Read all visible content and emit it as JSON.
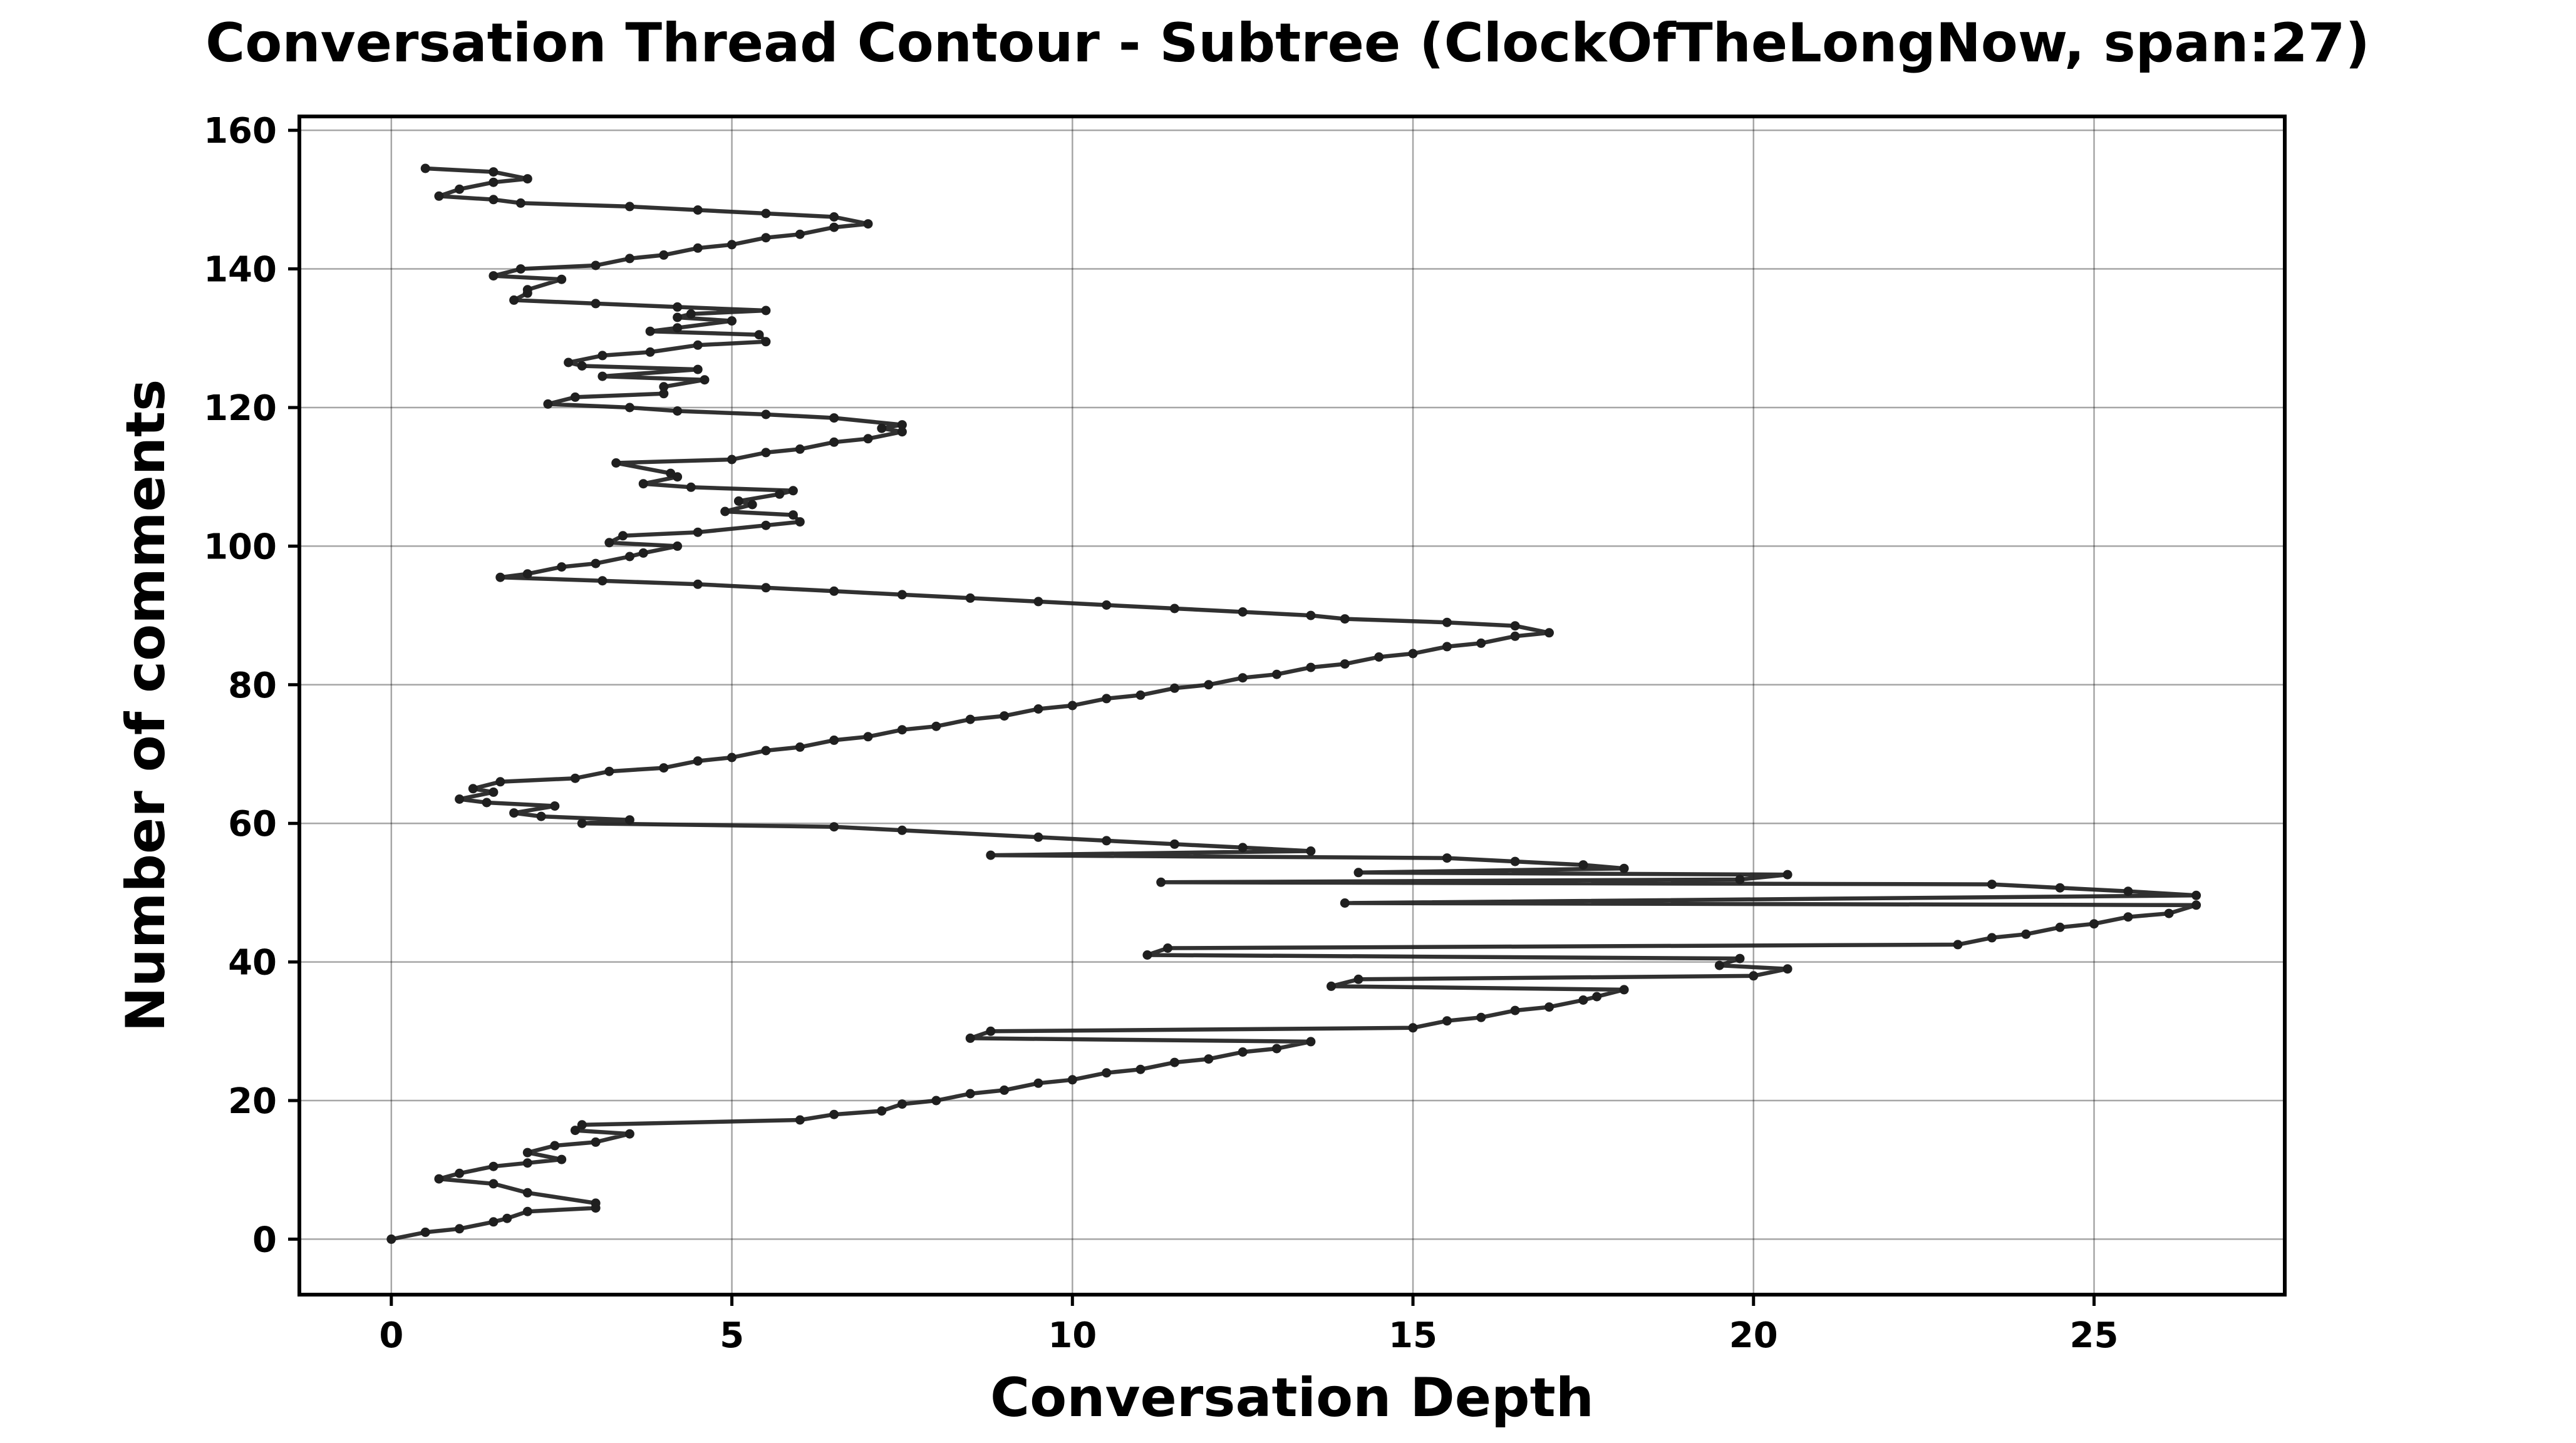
{
  "chart_data": {
    "type": "line",
    "title": "Conversation Thread Contour  - Subtree (ClockOfTheLongNow, span:27)",
    "xlabel": "Conversation Depth",
    "ylabel": "Number of comments",
    "xlim": [
      -1.35,
      27.8
    ],
    "ylim": [
      -8,
      162
    ],
    "xticks": [
      0,
      5,
      10,
      15,
      20,
      25
    ],
    "yticks": [
      0,
      20,
      40,
      60,
      80,
      100,
      120,
      140,
      160
    ],
    "xtick_labels": [
      "0",
      "5",
      "10",
      "15",
      "20",
      "25"
    ],
    "ytick_labels": [
      "0",
      "20",
      "40",
      "60",
      "80",
      "100",
      "120",
      "140",
      "160"
    ],
    "grid": true,
    "legend": "none",
    "series": [
      {
        "color": "#1f1f1f",
        "points": [
          [
            0,
            0
          ],
          [
            0.5,
            1
          ],
          [
            1,
            1.5
          ],
          [
            1.5,
            2.5
          ],
          [
            1.7,
            3
          ],
          [
            2,
            4
          ],
          [
            3,
            4.5
          ],
          [
            3,
            5.2
          ],
          [
            2,
            6.7
          ],
          [
            1.5,
            8
          ],
          [
            0.7,
            8.7
          ],
          [
            1,
            9.5
          ],
          [
            1.5,
            10.5
          ],
          [
            2,
            11
          ],
          [
            2.5,
            11.5
          ],
          [
            2,
            12.5
          ],
          [
            2.4,
            13.5
          ],
          [
            3,
            14
          ],
          [
            3.5,
            15.2
          ],
          [
            2.7,
            15.7
          ],
          [
            2.8,
            16.5
          ],
          [
            6,
            17.2
          ],
          [
            6.5,
            18
          ],
          [
            7.2,
            18.5
          ],
          [
            7.5,
            19.5
          ],
          [
            8,
            20
          ],
          [
            8.5,
            21
          ],
          [
            9,
            21.5
          ],
          [
            9.5,
            22.5
          ],
          [
            10,
            23
          ],
          [
            10.5,
            24
          ],
          [
            11,
            24.5
          ],
          [
            11.5,
            25.5
          ],
          [
            12,
            26
          ],
          [
            12.5,
            27
          ],
          [
            13,
            27.5
          ],
          [
            13.5,
            28.5
          ],
          [
            8.5,
            29
          ],
          [
            8.8,
            30
          ],
          [
            15,
            30.5
          ],
          [
            15.5,
            31.5
          ],
          [
            16,
            32
          ],
          [
            16.5,
            33
          ],
          [
            17,
            33.5
          ],
          [
            17.5,
            34.5
          ],
          [
            17.7,
            35
          ],
          [
            18.1,
            36
          ],
          [
            13.8,
            36.5
          ],
          [
            14.2,
            37.5
          ],
          [
            20,
            38
          ],
          [
            20.5,
            39
          ],
          [
            19.5,
            39.5
          ],
          [
            19.8,
            40.5
          ],
          [
            11.1,
            41
          ],
          [
            11.4,
            42
          ],
          [
            23,
            42.5
          ],
          [
            23.5,
            43.5
          ],
          [
            24,
            44
          ],
          [
            24.5,
            45
          ],
          [
            25,
            45.5
          ],
          [
            25.5,
            46.5
          ],
          [
            26.1,
            47
          ],
          [
            26.5,
            48.2
          ],
          [
            14,
            48.5
          ],
          [
            26.5,
            49.6
          ],
          [
            25.5,
            50.2
          ],
          [
            24.5,
            50.7
          ],
          [
            23.5,
            51.2
          ],
          [
            11.3,
            51.5
          ],
          [
            19.8,
            51.9
          ],
          [
            20.5,
            52.6
          ],
          [
            14.2,
            52.9
          ],
          [
            18.1,
            53.5
          ],
          [
            17.5,
            54
          ],
          [
            16.5,
            54.5
          ],
          [
            15.5,
            55
          ],
          [
            8.8,
            55.4
          ],
          [
            13.5,
            56
          ],
          [
            12.5,
            56.5
          ],
          [
            11.5,
            57
          ],
          [
            10.5,
            57.5
          ],
          [
            9.5,
            58
          ],
          [
            7.5,
            59
          ],
          [
            6.5,
            59.5
          ],
          [
            2.8,
            60
          ],
          [
            3.5,
            60.5
          ],
          [
            2.2,
            61
          ],
          [
            1.8,
            61.5
          ],
          [
            2.4,
            62.5
          ],
          [
            1.4,
            63
          ],
          [
            1,
            63.5
          ],
          [
            1.5,
            64.5
          ],
          [
            1.2,
            65
          ],
          [
            1.6,
            66
          ],
          [
            2.7,
            66.5
          ],
          [
            3.2,
            67.5
          ],
          [
            4,
            68
          ],
          [
            4.5,
            69
          ],
          [
            5,
            69.5
          ],
          [
            5.5,
            70.5
          ],
          [
            6,
            71
          ],
          [
            6.5,
            72
          ],
          [
            7,
            72.5
          ],
          [
            7.5,
            73.5
          ],
          [
            8,
            74
          ],
          [
            8.5,
            75
          ],
          [
            9,
            75.5
          ],
          [
            9.5,
            76.5
          ],
          [
            10,
            77
          ],
          [
            10.5,
            78
          ],
          [
            11,
            78.5
          ],
          [
            11.5,
            79.5
          ],
          [
            12,
            80
          ],
          [
            12.5,
            81
          ],
          [
            13,
            81.5
          ],
          [
            13.5,
            82.5
          ],
          [
            14,
            83
          ],
          [
            14.5,
            84
          ],
          [
            15,
            84.5
          ],
          [
            15.5,
            85.5
          ],
          [
            16,
            86
          ],
          [
            16.5,
            87
          ],
          [
            17,
            87.5
          ],
          [
            16.5,
            88.5
          ],
          [
            15.5,
            89
          ],
          [
            14,
            89.5
          ],
          [
            13.5,
            90
          ],
          [
            12.5,
            90.5
          ],
          [
            11.5,
            91
          ],
          [
            10.5,
            91.5
          ],
          [
            9.5,
            92
          ],
          [
            8.5,
            92.5
          ],
          [
            7.5,
            93
          ],
          [
            6.5,
            93.5
          ],
          [
            5.5,
            94
          ],
          [
            4.5,
            94.5
          ],
          [
            3.1,
            95
          ],
          [
            1.6,
            95.5
          ],
          [
            2,
            96
          ],
          [
            2.5,
            97
          ],
          [
            3,
            97.5
          ],
          [
            3.5,
            98.5
          ],
          [
            3.7,
            99
          ],
          [
            4.2,
            100
          ],
          [
            3.2,
            100.5
          ],
          [
            3.4,
            101.5
          ],
          [
            4.5,
            102
          ],
          [
            5.5,
            103
          ],
          [
            6,
            103.5
          ],
          [
            5.9,
            104.5
          ],
          [
            4.9,
            105
          ],
          [
            5.3,
            106
          ],
          [
            5.1,
            106.5
          ],
          [
            5.7,
            107.5
          ],
          [
            5.9,
            108
          ],
          [
            4.4,
            108.5
          ],
          [
            3.7,
            109
          ],
          [
            4.2,
            110
          ],
          [
            4.1,
            110.5
          ],
          [
            3.3,
            112
          ],
          [
            5,
            112.5
          ],
          [
            5.5,
            113.5
          ],
          [
            6,
            114
          ],
          [
            6.5,
            115
          ],
          [
            7,
            115.5
          ],
          [
            7.5,
            116.5
          ],
          [
            7.2,
            117
          ],
          [
            7.5,
            117.5
          ],
          [
            6.5,
            118.5
          ],
          [
            5.5,
            119
          ],
          [
            4.2,
            119.5
          ],
          [
            3.5,
            120
          ],
          [
            2.3,
            120.5
          ],
          [
            2.7,
            121.5
          ],
          [
            4,
            122
          ],
          [
            4,
            123
          ],
          [
            4.6,
            124
          ],
          [
            3.1,
            124.5
          ],
          [
            4.5,
            125.5
          ],
          [
            2.8,
            126
          ],
          [
            2.6,
            126.5
          ],
          [
            3.1,
            127.5
          ],
          [
            3.8,
            128
          ],
          [
            4.5,
            129
          ],
          [
            5.5,
            129.5
          ],
          [
            5.4,
            130.5
          ],
          [
            3.8,
            131
          ],
          [
            4.2,
            131.5
          ],
          [
            5,
            132.5
          ],
          [
            4.2,
            133
          ],
          [
            4.4,
            133.5
          ],
          [
            5.5,
            134
          ],
          [
            4.2,
            134.5
          ],
          [
            3,
            135
          ],
          [
            1.8,
            135.5
          ],
          [
            2,
            136.5
          ],
          [
            2,
            137
          ],
          [
            2.5,
            138.5
          ],
          [
            1.5,
            139
          ],
          [
            1.9,
            140
          ],
          [
            3,
            140.5
          ],
          [
            3.5,
            141.5
          ],
          [
            4,
            142
          ],
          [
            4.5,
            143
          ],
          [
            5,
            143.5
          ],
          [
            5.5,
            144.5
          ],
          [
            6,
            145
          ],
          [
            6.5,
            146
          ],
          [
            7,
            146.5
          ],
          [
            6.5,
            147.5
          ],
          [
            5.5,
            148
          ],
          [
            4.5,
            148.5
          ],
          [
            3.5,
            149
          ],
          [
            1.9,
            149.5
          ],
          [
            1.5,
            150
          ],
          [
            0.7,
            150.5
          ],
          [
            1,
            151.5
          ],
          [
            1.5,
            152.5
          ],
          [
            2,
            153
          ],
          [
            1.5,
            154
          ],
          [
            0.5,
            154.5
          ]
        ]
      }
    ]
  }
}
